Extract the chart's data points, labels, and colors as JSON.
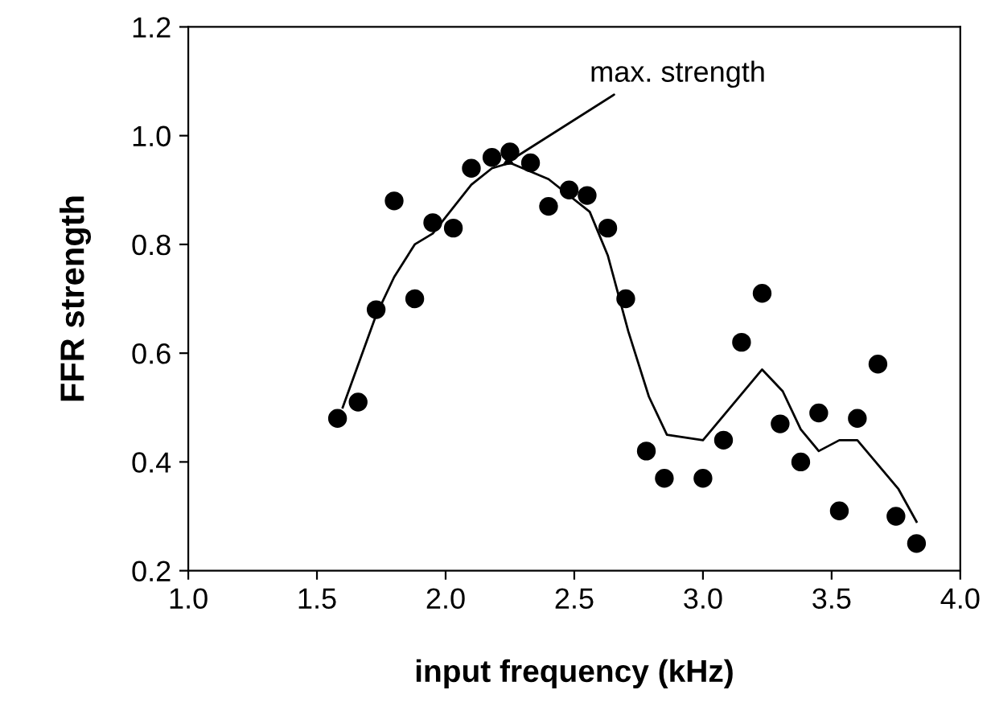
{
  "chart_data": {
    "type": "scatter",
    "xlabel": "input frequency (kHz)",
    "ylabel": "FFR strength",
    "xlim": [
      1.0,
      4.0
    ],
    "xticks": [
      {
        "value": 1.0,
        "label": "1.0"
      },
      {
        "value": 1.5,
        "label": "1.5"
      },
      {
        "value": 2.0,
        "label": "2.0"
      },
      {
        "value": 2.5,
        "label": "2.5"
      },
      {
        "value": 3.0,
        "label": "3.0"
      },
      {
        "value": 3.5,
        "label": "3.5"
      },
      {
        "value": 4.0,
        "label": "4.0"
      }
    ],
    "ylim": [
      0.2,
      1.2
    ],
    "yticks": [
      0.2,
      0.4,
      0.6,
      0.8,
      {
        "value": 1.0,
        "label": "1.0"
      },
      1.2
    ],
    "grid": false,
    "legend": false,
    "series": [
      {
        "color": "#000000",
        "marker": "circle",
        "x": [
          1.58,
          1.66,
          1.73,
          1.8,
          1.88,
          1.95,
          2.03,
          2.1,
          2.18,
          2.25,
          2.33,
          2.4,
          2.48,
          2.55,
          2.63,
          2.7,
          2.78,
          2.85,
          3.0,
          3.08,
          3.15,
          3.23,
          3.3,
          3.38,
          3.45,
          3.53,
          3.6,
          3.68,
          3.75,
          3.83
        ],
        "values": [
          0.48,
          0.51,
          0.68,
          0.88,
          0.7,
          0.84,
          0.83,
          0.94,
          0.96,
          0.97,
          0.95,
          0.87,
          0.9,
          0.89,
          0.83,
          0.7,
          0.42,
          0.37,
          0.37,
          0.44,
          0.62,
          0.71,
          0.47,
          0.4,
          0.49,
          0.31,
          0.48,
          0.58,
          0.3,
          0.25
        ]
      },
      {
        "type": "line",
        "color": "#000000",
        "marker": "none",
        "line_style": "solid",
        "x": [
          1.6,
          1.73,
          1.8,
          1.88,
          1.95,
          2.1,
          2.18,
          2.25,
          2.4,
          2.56,
          2.63,
          2.71,
          2.79,
          2.86,
          3.0,
          3.23,
          3.31,
          3.38,
          3.45,
          3.53,
          3.6,
          3.76,
          3.83
        ],
        "values": [
          0.5,
          0.67,
          0.74,
          0.8,
          0.82,
          0.91,
          0.94,
          0.95,
          0.92,
          0.86,
          0.78,
          0.64,
          0.52,
          0.45,
          0.44,
          0.57,
          0.53,
          0.46,
          0.42,
          0.44,
          0.44,
          0.35,
          0.29
        ]
      }
    ],
    "annotations": [
      {
        "text": "max. strength",
        "x": 2.22,
        "y": 0.945
      }
    ]
  }
}
